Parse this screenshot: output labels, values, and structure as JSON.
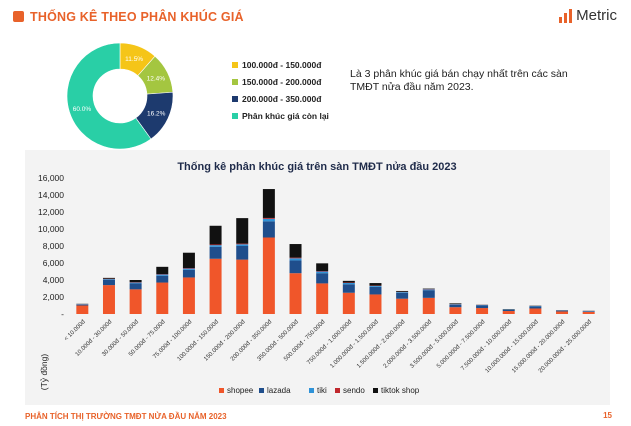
{
  "header": {
    "title": "THỐNG KÊ THEO PHÂN KHÚC GIÁ",
    "logo_text": "Metric"
  },
  "donut": {
    "slices": [
      {
        "label": "100.000đ - 150.000đ",
        "value": 11.5,
        "display": "11.5%",
        "color": "#f5c518"
      },
      {
        "label": "150.000đ - 200.000đ",
        "value": 12.4,
        "display": "12.4%",
        "color": "#a4c640"
      },
      {
        "label": "200.000đ - 350.000đ",
        "value": 16.2,
        "display": "16.2%",
        "color": "#1d3a6e"
      },
      {
        "label": "Phân khúc giá còn lại",
        "value": 60.0,
        "display": "60.0%",
        "color": "#29cfa6"
      }
    ]
  },
  "side_text": "Là 3 phân khúc giá bán chạy nhất trên các sàn TMĐT nửa đầu năm 2023.",
  "chart_data": {
    "type": "bar",
    "stacked": true,
    "title": "Thống kê phân khúc giá trên sàn TMĐT nửa đầu 2023",
    "ylabel": "(Tỷ đồng)",
    "xlabel": "",
    "ylim": [
      0,
      16000
    ],
    "yticks": [
      "-",
      "2,000",
      "4,000",
      "6,000",
      "8,000",
      "10,000",
      "12,000",
      "14,000",
      "16,000"
    ],
    "grid": false,
    "legend_position": "bottom",
    "categories": [
      "< 10.000đ",
      "10.000đ - 30.000đ",
      "30.000đ - 50.000đ",
      "50.000đ - 75.000đ",
      "75.000đ - 100.000đ",
      "100.000đ - 150.000đ",
      "150.000đ - 200.000đ",
      "200.000đ - 350.000đ",
      "350.000đ - 500.000đ",
      "500.000đ - 750.000đ",
      "750.000đ - 1.000.000đ",
      "1.000.000đ - 1.500.000đ",
      "1.500.000đ - 2.000.000đ",
      "2.000.000đ - 3.500.000đ",
      "3.500.000đ - 5.000.000đ",
      "5.000.000đ - 7.500.000đ",
      "7.500.000đ - 10.000.000đ",
      "10.000.000đ - 15.000.000đ",
      "15.000.000đ - 20.000.000đ",
      "20.000.000đ - 25.000.000đ"
    ],
    "series": [
      {
        "name": "shopee",
        "color": "#f0562a",
        "values": [
          1000,
          3400,
          2900,
          3700,
          4300,
          6500,
          6400,
          9000,
          4800,
          3600,
          2500,
          2300,
          1800,
          1900,
          800,
          700,
          350,
          650,
          300,
          250
        ]
      },
      {
        "name": "lazada",
        "color": "#1f4e8c",
        "values": [
          100,
          600,
          700,
          800,
          900,
          1400,
          1600,
          1900,
          1500,
          1200,
          1000,
          900,
          700,
          900,
          300,
          300,
          150,
          250,
          100,
          80
        ]
      },
      {
        "name": "tiki",
        "color": "#2f93d8",
        "values": [
          50,
          100,
          100,
          150,
          150,
          200,
          200,
          300,
          250,
          200,
          150,
          100,
          80,
          100,
          50,
          50,
          30,
          40,
          20,
          20
        ]
      },
      {
        "name": "sendo",
        "color": "#c0282d",
        "values": [
          20,
          50,
          50,
          50,
          60,
          80,
          80,
          100,
          80,
          60,
          50,
          40,
          30,
          40,
          20,
          20,
          10,
          10,
          10,
          10
        ]
      },
      {
        "name": "tiktok shop",
        "color": "#111111",
        "values": [
          30,
          100,
          250,
          850,
          1800,
          2200,
          3000,
          3400,
          1600,
          900,
          200,
          300,
          100,
          50,
          80,
          20,
          40,
          30,
          20,
          20
        ]
      }
    ]
  },
  "footer": {
    "text": "PHÂN TÍCH THỊ TRƯỜNG TMĐT NỬA ĐẦU NĂM 2023",
    "page": "15"
  }
}
